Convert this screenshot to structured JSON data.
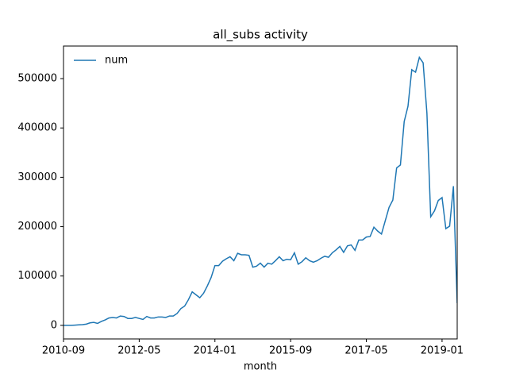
{
  "chart_data": {
    "type": "line",
    "title": "all_subs activity",
    "x_label": "month",
    "x": [
      "2010-09",
      "2010-10",
      "2010-11",
      "2010-12",
      "2011-01",
      "2011-02",
      "2011-03",
      "2011-04",
      "2011-05",
      "2011-06",
      "2011-07",
      "2011-08",
      "2011-09",
      "2011-10",
      "2011-11",
      "2011-12",
      "2012-01",
      "2012-02",
      "2012-03",
      "2012-04",
      "2012-05",
      "2012-06",
      "2012-07",
      "2012-08",
      "2012-09",
      "2012-10",
      "2012-11",
      "2012-12",
      "2013-01",
      "2013-02",
      "2013-03",
      "2013-04",
      "2013-05",
      "2013-06",
      "2013-07",
      "2013-08",
      "2013-09",
      "2013-10",
      "2013-11",
      "2013-12",
      "2014-01",
      "2014-02",
      "2014-03",
      "2014-04",
      "2014-05",
      "2014-06",
      "2014-07",
      "2014-08",
      "2014-09",
      "2014-10",
      "2014-11",
      "2014-12",
      "2015-01",
      "2015-02",
      "2015-03",
      "2015-04",
      "2015-05",
      "2015-06",
      "2015-07",
      "2015-08",
      "2015-09",
      "2015-10",
      "2015-11",
      "2015-12",
      "2016-01",
      "2016-02",
      "2016-03",
      "2016-04",
      "2016-05",
      "2016-06",
      "2016-07",
      "2016-08",
      "2016-09",
      "2016-10",
      "2016-11",
      "2016-12",
      "2017-01",
      "2017-02",
      "2017-03",
      "2017-04",
      "2017-05",
      "2017-06",
      "2017-07",
      "2017-08",
      "2017-09",
      "2017-10",
      "2017-11",
      "2017-12",
      "2018-01",
      "2018-02",
      "2018-03",
      "2018-04",
      "2018-05",
      "2018-06",
      "2018-07",
      "2018-08",
      "2018-09",
      "2018-10",
      "2018-11",
      "2018-12",
      "2019-01",
      "2019-02",
      "2019-03",
      "2019-04",
      "2019-05"
    ],
    "series": [
      {
        "name": "num",
        "color": "#1f77b4",
        "values": [
          0,
          0,
          0,
          500,
          1000,
          1500,
          2500,
          5000,
          6000,
          4000,
          8000,
          11000,
          15000,
          16000,
          15000,
          19000,
          18000,
          14000,
          14000,
          16000,
          14000,
          12000,
          18000,
          15000,
          15000,
          17000,
          17000,
          16000,
          19000,
          19000,
          24000,
          34000,
          39000,
          52000,
          68000,
          62000,
          56000,
          65000,
          80000,
          97000,
          121000,
          121000,
          130000,
          135000,
          139000,
          131000,
          146000,
          143000,
          143000,
          142000,
          118000,
          120000,
          126000,
          118000,
          126000,
          124000,
          131000,
          139000,
          131000,
          134000,
          133000,
          147000,
          124000,
          129000,
          137000,
          131000,
          128000,
          131000,
          136000,
          140000,
          138000,
          147000,
          153000,
          160000,
          148000,
          161000,
          163000,
          152000,
          173000,
          173000,
          179000,
          180000,
          199000,
          191000,
          185000,
          212000,
          239000,
          254000,
          319000,
          325000,
          413000,
          444000,
          518000,
          513000,
          543000,
          532000,
          430000,
          220000,
          232000,
          253000,
          259000,
          196000,
          201000,
          282000,
          45000
        ]
      }
    ],
    "xlim": [
      "2010-09",
      "2019-05"
    ],
    "xticks": [
      "2010-09",
      "2012-05",
      "2014-01",
      "2015-09",
      "2017-05",
      "2019-01"
    ],
    "ylim": [
      -27500,
      566000
    ],
    "yticks": [
      0,
      100000,
      200000,
      300000,
      400000,
      500000
    ],
    "legend": "upper left"
  }
}
